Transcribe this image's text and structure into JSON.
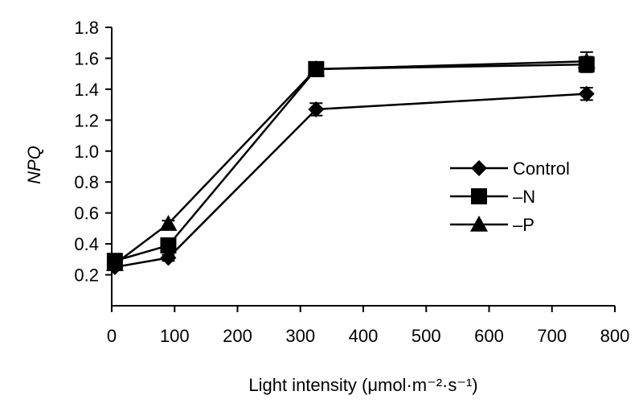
{
  "chart_data": {
    "type": "line",
    "title": "",
    "xlabel": "Light intensity (μmol·m⁻²·s⁻¹)",
    "ylabel": "NPQ",
    "xlim": [
      0,
      800
    ],
    "ylim": [
      0,
      1.8
    ],
    "xticks": [
      0,
      100,
      200,
      300,
      400,
      500,
      600,
      700,
      800
    ],
    "yticks": [
      0.2,
      0.4,
      0.6,
      0.8,
      1.0,
      1.2,
      1.4,
      1.6,
      1.8
    ],
    "xtick_labels": [
      "0",
      "100",
      "200",
      "300",
      "400",
      "500",
      "600",
      "700",
      "800"
    ],
    "ytick_labels": [
      "0.2",
      "0.4",
      "0.6",
      "0.8",
      "1.0",
      "1.2",
      "1.4",
      "1.6",
      "1.8"
    ],
    "grid": false,
    "legend_position": "right",
    "x": [
      5,
      90,
      325,
      755
    ],
    "series": [
      {
        "name": "Control",
        "marker": "diamond",
        "values": [
          0.25,
          0.31,
          1.27,
          1.37
        ],
        "errors": [
          0.02,
          0.02,
          0.04,
          0.04
        ]
      },
      {
        "name": "–N",
        "marker": "square",
        "values": [
          0.29,
          0.39,
          1.53,
          1.56
        ],
        "errors": [
          0.02,
          0.03,
          0.03,
          0.05
        ]
      },
      {
        "name": "–P",
        "marker": "triangle",
        "values": [
          0.27,
          0.53,
          1.53,
          1.58
        ],
        "errors": [
          0.02,
          0.02,
          0.03,
          0.06
        ]
      }
    ],
    "colors": {
      "line": "#000000"
    }
  }
}
